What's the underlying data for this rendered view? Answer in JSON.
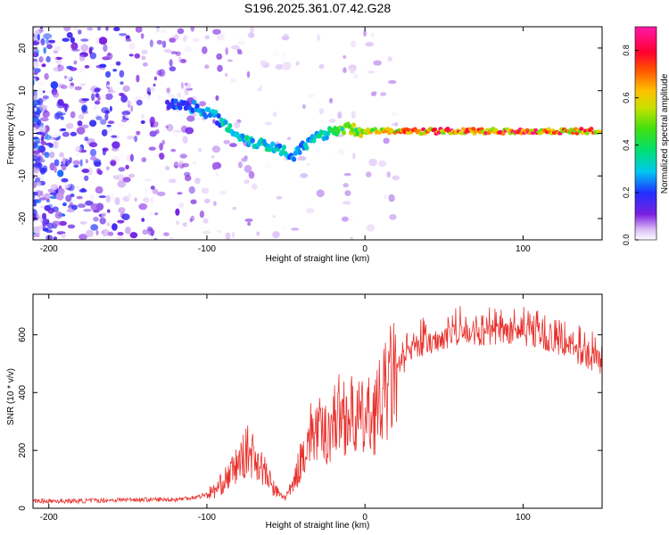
{
  "title": "S196.2025.361.07.42.G28",
  "colors": {
    "snr_line": "#e8312c",
    "axis": "#000000",
    "background": "#ffffff"
  },
  "chart_data": [
    {
      "type": "heatmap",
      "name": "spectrogram",
      "xlabel": "Height of straight line (km)",
      "ylabel": "Frequency (Hz)",
      "xlim": [
        -210,
        150
      ],
      "ylim": [
        -25,
        25
      ],
      "xticks": [
        -200,
        -100,
        0,
        100
      ],
      "xtick_labels": [
        "-200",
        "-100",
        "0",
        "100"
      ],
      "yticks": [
        -20,
        -10,
        0,
        10,
        20
      ],
      "ytick_labels": [
        "-20",
        "-10",
        "0",
        "10",
        "20"
      ],
      "colorbar": {
        "label": "Normalized spectral amplitude",
        "range": [
          0,
          0.9
        ],
        "ticks": [
          0,
          0.2,
          0.4,
          0.6,
          0.8
        ],
        "tick_labels": [
          "0.0",
          "0.2",
          "0.4",
          "0.6",
          "0.8"
        ]
      },
      "ridge": {
        "x": [
          -125,
          -115,
          -105,
          -95,
          -85,
          -75,
          -65,
          -55,
          -45,
          -38,
          -30,
          -20,
          -10,
          0,
          20,
          50,
          100,
          150
        ],
        "freq": [
          7,
          6.5,
          6,
          4,
          1,
          -1.5,
          -2.5,
          -3.5,
          -5,
          -3,
          -1,
          1,
          1,
          0.5,
          0.5,
          0.5,
          0.5,
          0.5
        ],
        "amplitude": [
          0.2,
          0.25,
          0.3,
          0.3,
          0.35,
          0.35,
          0.4,
          0.35,
          0.3,
          0.3,
          0.35,
          0.45,
          0.55,
          0.6,
          0.75,
          0.8,
          0.8,
          0.75
        ]
      }
    },
    {
      "type": "line",
      "name": "snr",
      "xlabel": "Height of straight line (km)",
      "ylabel": "SNR (10 * v/v)",
      "xlim": [
        -210,
        150
      ],
      "ylim": [
        0,
        740
      ],
      "xticks": [
        -200,
        -100,
        0,
        100
      ],
      "xtick_labels": [
        "-200",
        "-100",
        "0",
        "100"
      ],
      "yticks": [
        0,
        200,
        400,
        600
      ],
      "ytick_labels": [
        "0",
        "200",
        "400",
        "600"
      ],
      "series": [
        {
          "name": "SNR",
          "x": [
            -210,
            -180,
            -150,
            -120,
            -105,
            -95,
            -88,
            -82,
            -78,
            -74,
            -70,
            -66,
            -62,
            -58,
            -54,
            -50,
            -46,
            -42,
            -38,
            -34,
            -30,
            -26,
            -22,
            -18,
            -14,
            -10,
            -5,
            0,
            5,
            10,
            15,
            20,
            30,
            40,
            50,
            60,
            70,
            80,
            90,
            100,
            110,
            120,
            130,
            140,
            150
          ],
          "y": [
            25,
            25,
            30,
            30,
            40,
            60,
            100,
            140,
            170,
            200,
            180,
            150,
            110,
            70,
            45,
            40,
            70,
            140,
            210,
            260,
            270,
            250,
            280,
            320,
            330,
            320,
            310,
            300,
            330,
            360,
            430,
            480,
            540,
            570,
            590,
            600,
            600,
            600,
            600,
            600,
            590,
            570,
            550,
            520,
            500
          ]
        }
      ]
    }
  ]
}
